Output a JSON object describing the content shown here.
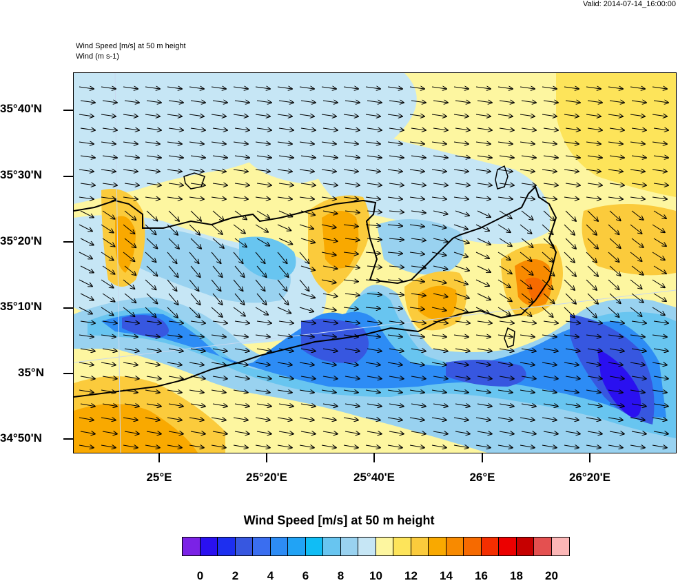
{
  "header": {
    "valid": "Valid: 2014-07-14_16:00:00",
    "title_line1": "Wind Speed [m/s] at 50 m height",
    "title_line2": "Wind   (m s-1)"
  },
  "axes": {
    "lat_labels": [
      "35°40'N",
      "35°30'N",
      "35°20'N",
      "35°10'N",
      "35°N",
      "34°50'N"
    ],
    "lon_labels": [
      "25°E",
      "25°20'E",
      "25°40'E",
      "26°E",
      "26°20'E"
    ]
  },
  "colorbar": {
    "title": "Wind Speed [m/s] at 50 m height",
    "labels": [
      "0",
      "2",
      "4",
      "6",
      "8",
      "10",
      "12",
      "14",
      "16",
      "18",
      "20"
    ],
    "colors": [
      "#7b22e6",
      "#2a10f0",
      "#1d2ff0",
      "#3757e0",
      "#3a6ef0",
      "#2d8cf5",
      "#21a3f5",
      "#10bdf5",
      "#68c5f0",
      "#99d2f0",
      "#c6e6f5",
      "#fdf6a0",
      "#fde45a",
      "#fbcb3c",
      "#f9a900",
      "#f88a00",
      "#f66a00",
      "#f42e00",
      "#ec0000",
      "#c60000",
      "#e45050",
      "#fbb6b6"
    ]
  },
  "map": {
    "background_color": "#fdf6a0",
    "arrow_direction": "east-southeast"
  }
}
